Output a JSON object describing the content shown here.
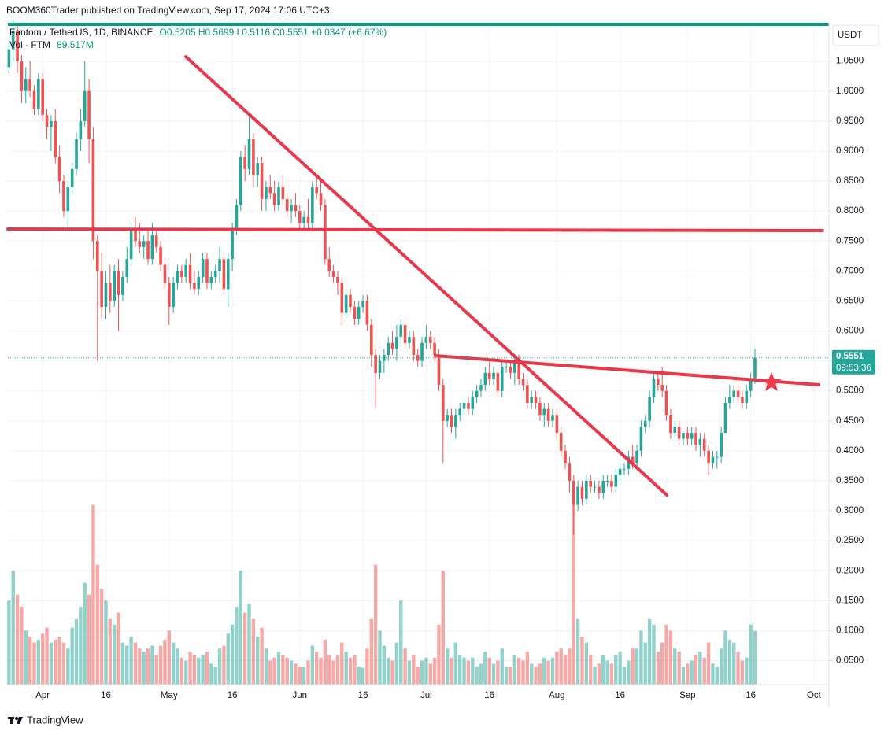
{
  "chart_data": {
    "type": "candlestick",
    "header": "BOOM360Trader published on TradingView.com, Sep 17, 2024 17:06 UTC+3",
    "symbol": "Fantom / TetherUS, 1D, BINANCE",
    "ohlc_text": "O0.5205 H0.5699 L0.5116 C0.5551 +0.0347 (+6.67%)",
    "volume_title": "Vol · FTM",
    "volume_text": "89.517M",
    "currency": "USDT",
    "countdown": "09:53:36",
    "brand": "TradingView",
    "last_price": {
      "value": 0.5551,
      "label": "0.5551"
    },
    "up_color": "#26a69a",
    "down_color": "#ef5350",
    "grid": true,
    "x": [
      "Mar 24",
      "Mar 25",
      "Mar 26",
      "Mar 27",
      "Mar 28",
      "Mar 29",
      "Mar 30",
      "Mar 31",
      "Apr 1",
      "Apr 2",
      "Apr 3",
      "Apr 4",
      "Apr 5",
      "Apr 6",
      "Apr 7",
      "Apr 8",
      "Apr 9",
      "Apr 10",
      "Apr 11",
      "Apr 12",
      "Apr 13",
      "Apr 14",
      "Apr 15",
      "Apr 16",
      "Apr 17",
      "Apr 18",
      "Apr 19",
      "Apr 20",
      "Apr 21",
      "Apr 22",
      "Apr 23",
      "Apr 24",
      "Apr 25",
      "Apr 26",
      "Apr 27",
      "Apr 28",
      "Apr 29",
      "Apr 30",
      "May 1",
      "May 2",
      "May 3",
      "May 4",
      "May 5",
      "May 6",
      "May 7",
      "May 8",
      "May 9",
      "May 10",
      "May 11",
      "May 12",
      "May 13",
      "May 14",
      "May 15",
      "May 16",
      "May 17",
      "May 18",
      "May 19",
      "May 20",
      "May 21",
      "May 22",
      "May 23",
      "May 24",
      "May 25",
      "May 26",
      "May 27",
      "May 28",
      "May 29",
      "May 30",
      "May 31",
      "Jun 1",
      "Jun 2",
      "Jun 3",
      "Jun 4",
      "Jun 5",
      "Jun 6",
      "Jun 7",
      "Jun 8",
      "Jun 9",
      "Jun 10",
      "Jun 11",
      "Jun 12",
      "Jun 13",
      "Jun 14",
      "Jun 15",
      "Jun 16",
      "Jun 17",
      "Jun 18",
      "Jun 19",
      "Jun 20",
      "Jun 21",
      "Jun 22",
      "Jun 23",
      "Jun 24",
      "Jun 25",
      "Jun 26",
      "Jun 27",
      "Jun 28",
      "Jun 29",
      "Jun 30",
      "Jul 1",
      "Jul 2",
      "Jul 3",
      "Jul 4",
      "Jul 5",
      "Jul 6",
      "Jul 7",
      "Jul 8",
      "Jul 9",
      "Jul 10",
      "Jul 11",
      "Jul 12",
      "Jul 13",
      "Jul 14",
      "Jul 15",
      "Jul 16",
      "Jul 17",
      "Jul 18",
      "Jul 19",
      "Jul 20",
      "Jul 21",
      "Jul 22",
      "Jul 23",
      "Jul 24",
      "Jul 25",
      "Jul 26",
      "Jul 27",
      "Jul 28",
      "Jul 29",
      "Jul 30",
      "Jul 31",
      "Aug 1",
      "Aug 2",
      "Aug 3",
      "Aug 4",
      "Aug 5",
      "Aug 6",
      "Aug 7",
      "Aug 8",
      "Aug 9",
      "Aug 10",
      "Aug 11",
      "Aug 12",
      "Aug 13",
      "Aug 14",
      "Aug 15",
      "Aug 16",
      "Aug 17",
      "Aug 18",
      "Aug 19",
      "Aug 20",
      "Aug 21",
      "Aug 22",
      "Aug 23",
      "Aug 24",
      "Aug 25",
      "Aug 26",
      "Aug 27",
      "Aug 28",
      "Aug 29",
      "Aug 30",
      "Aug 31",
      "Sep 1",
      "Sep 2",
      "Sep 3",
      "Sep 4",
      "Sep 5",
      "Sep 6",
      "Sep 7",
      "Sep 8",
      "Sep 9",
      "Sep 10",
      "Sep 11",
      "Sep 12",
      "Sep 13",
      "Sep 14",
      "Sep 15",
      "Sep 16",
      "Sep 17"
    ],
    "open": [
      1.04,
      1.07,
      1.1,
      1.05,
      1.0,
      1.02,
      1.0,
      0.97,
      1.02,
      0.96,
      0.94,
      0.95,
      0.89,
      0.85,
      0.8,
      0.84,
      0.87,
      0.92,
      0.95,
      1.0,
      0.92,
      0.75,
      0.7,
      0.64,
      0.68,
      0.65,
      0.7,
      0.66,
      0.69,
      0.72,
      0.77,
      0.75,
      0.74,
      0.75,
      0.72,
      0.76,
      0.74,
      0.71,
      0.68,
      0.64,
      0.68,
      0.7,
      0.69,
      0.71,
      0.68,
      0.67,
      0.69,
      0.72,
      0.68,
      0.69,
      0.7,
      0.72,
      0.67,
      0.72,
      0.77,
      0.81,
      0.89,
      0.87,
      0.92,
      0.86,
      0.88,
      0.82,
      0.84,
      0.83,
      0.81,
      0.84,
      0.82,
      0.8,
      0.81,
      0.8,
      0.78,
      0.79,
      0.78,
      0.84,
      0.83,
      0.81,
      0.72,
      0.7,
      0.69,
      0.68,
      0.63,
      0.66,
      0.64,
      0.62,
      0.64,
      0.65,
      0.61,
      0.56,
      0.53,
      0.55,
      0.56,
      0.58,
      0.57,
      0.59,
      0.61,
      0.58,
      0.59,
      0.56,
      0.55,
      0.58,
      0.59,
      0.58,
      0.56,
      0.51,
      0.45,
      0.46,
      0.44,
      0.46,
      0.47,
      0.48,
      0.47,
      0.49,
      0.5,
      0.51,
      0.53,
      0.52,
      0.53,
      0.5,
      0.54,
      0.54,
      0.53,
      0.55,
      0.52,
      0.51,
      0.48,
      0.49,
      0.48,
      0.46,
      0.47,
      0.45,
      0.46,
      0.43,
      0.4,
      0.38,
      0.35,
      0.31,
      0.34,
      0.32,
      0.35,
      0.34,
      0.34,
      0.33,
      0.35,
      0.35,
      0.34,
      0.36,
      0.37,
      0.37,
      0.39,
      0.38,
      0.4,
      0.44,
      0.45,
      0.49,
      0.52,
      0.51,
      0.5,
      0.46,
      0.43,
      0.44,
      0.42,
      0.43,
      0.42,
      0.43,
      0.41,
      0.42,
      0.4,
      0.38,
      0.39,
      0.39,
      0.43,
      0.48,
      0.49,
      0.5,
      0.49,
      0.48,
      0.5,
      0.5205
    ],
    "high": [
      1.08,
      1.12,
      1.11,
      1.06,
      1.04,
      1.05,
      1.01,
      1.03,
      1.03,
      0.97,
      0.96,
      0.97,
      0.91,
      0.86,
      0.85,
      0.88,
      0.93,
      0.97,
      1.05,
      1.02,
      0.94,
      0.76,
      0.73,
      0.7,
      0.71,
      0.71,
      0.72,
      0.7,
      0.74,
      0.78,
      0.79,
      0.78,
      0.76,
      0.77,
      0.78,
      0.77,
      0.75,
      0.72,
      0.69,
      0.69,
      0.71,
      0.71,
      0.72,
      0.73,
      0.7,
      0.7,
      0.73,
      0.73,
      0.7,
      0.71,
      0.74,
      0.73,
      0.73,
      0.78,
      0.82,
      0.9,
      0.91,
      0.96,
      0.93,
      0.89,
      0.89,
      0.85,
      0.86,
      0.85,
      0.85,
      0.86,
      0.83,
      0.82,
      0.83,
      0.81,
      0.8,
      0.82,
      0.85,
      0.86,
      0.85,
      0.82,
      0.74,
      0.71,
      0.7,
      0.69,
      0.67,
      0.67,
      0.65,
      0.65,
      0.66,
      0.66,
      0.62,
      0.57,
      0.56,
      0.57,
      0.59,
      0.6,
      0.61,
      0.62,
      0.62,
      0.6,
      0.6,
      0.57,
      0.59,
      0.61,
      0.6,
      0.59,
      0.57,
      0.52,
      0.47,
      0.47,
      0.47,
      0.48,
      0.49,
      0.49,
      0.5,
      0.51,
      0.52,
      0.54,
      0.55,
      0.54,
      0.54,
      0.55,
      0.55,
      0.55,
      0.56,
      0.56,
      0.53,
      0.52,
      0.5,
      0.5,
      0.49,
      0.48,
      0.48,
      0.47,
      0.47,
      0.44,
      0.41,
      0.39,
      0.36,
      0.35,
      0.35,
      0.36,
      0.36,
      0.35,
      0.35,
      0.36,
      0.36,
      0.36,
      0.37,
      0.38,
      0.38,
      0.4,
      0.41,
      0.41,
      0.45,
      0.46,
      0.5,
      0.53,
      0.53,
      0.54,
      0.51,
      0.47,
      0.45,
      0.45,
      0.43,
      0.44,
      0.44,
      0.44,
      0.43,
      0.43,
      0.41,
      0.4,
      0.4,
      0.44,
      0.49,
      0.51,
      0.51,
      0.52,
      0.5,
      0.51,
      0.53,
      0.5699
    ],
    "low": [
      1.03,
      1.05,
      1.03,
      0.98,
      0.98,
      0.99,
      0.96,
      0.96,
      0.95,
      0.92,
      0.9,
      0.88,
      0.83,
      0.79,
      0.77,
      0.83,
      0.86,
      0.9,
      0.94,
      0.88,
      0.72,
      0.55,
      0.62,
      0.62,
      0.63,
      0.64,
      0.6,
      0.65,
      0.68,
      0.71,
      0.74,
      0.73,
      0.72,
      0.71,
      0.71,
      0.73,
      0.7,
      0.67,
      0.61,
      0.63,
      0.67,
      0.68,
      0.68,
      0.67,
      0.66,
      0.66,
      0.68,
      0.67,
      0.67,
      0.68,
      0.68,
      0.66,
      0.64,
      0.7,
      0.76,
      0.8,
      0.85,
      0.86,
      0.84,
      0.84,
      0.8,
      0.8,
      0.82,
      0.8,
      0.8,
      0.81,
      0.79,
      0.78,
      0.79,
      0.77,
      0.77,
      0.77,
      0.77,
      0.82,
      0.8,
      0.71,
      0.69,
      0.68,
      0.66,
      0.61,
      0.62,
      0.63,
      0.61,
      0.61,
      0.63,
      0.6,
      0.54,
      0.47,
      0.52,
      0.53,
      0.55,
      0.56,
      0.55,
      0.58,
      0.57,
      0.57,
      0.55,
      0.54,
      0.54,
      0.57,
      0.57,
      0.55,
      0.5,
      0.38,
      0.44,
      0.43,
      0.42,
      0.45,
      0.46,
      0.46,
      0.46,
      0.48,
      0.49,
      0.5,
      0.51,
      0.51,
      0.49,
      0.49,
      0.53,
      0.52,
      0.51,
      0.51,
      0.5,
      0.47,
      0.47,
      0.47,
      0.45,
      0.44,
      0.44,
      0.44,
      0.42,
      0.39,
      0.37,
      0.33,
      0.26,
      0.3,
      0.31,
      0.31,
      0.33,
      0.33,
      0.32,
      0.32,
      0.34,
      0.33,
      0.33,
      0.35,
      0.36,
      0.36,
      0.37,
      0.37,
      0.39,
      0.43,
      0.44,
      0.48,
      0.5,
      0.49,
      0.45,
      0.42,
      0.42,
      0.41,
      0.41,
      0.41,
      0.41,
      0.4,
      0.39,
      0.39,
      0.36,
      0.37,
      0.37,
      0.38,
      0.43,
      0.47,
      0.48,
      0.48,
      0.47,
      0.47,
      0.49,
      0.5116
    ],
    "close": [
      1.07,
      1.1,
      1.05,
      1.0,
      1.02,
      1.0,
      0.97,
      1.02,
      0.96,
      0.94,
      0.95,
      0.89,
      0.85,
      0.8,
      0.84,
      0.87,
      0.92,
      0.95,
      1.0,
      0.92,
      0.75,
      0.7,
      0.64,
      0.68,
      0.65,
      0.7,
      0.66,
      0.69,
      0.72,
      0.77,
      0.75,
      0.74,
      0.75,
      0.72,
      0.76,
      0.74,
      0.71,
      0.68,
      0.64,
      0.68,
      0.7,
      0.69,
      0.71,
      0.68,
      0.67,
      0.69,
      0.72,
      0.68,
      0.69,
      0.7,
      0.72,
      0.67,
      0.72,
      0.77,
      0.81,
      0.89,
      0.87,
      0.92,
      0.86,
      0.88,
      0.82,
      0.84,
      0.83,
      0.81,
      0.84,
      0.82,
      0.8,
      0.81,
      0.8,
      0.78,
      0.79,
      0.78,
      0.84,
      0.83,
      0.81,
      0.72,
      0.7,
      0.69,
      0.68,
      0.63,
      0.66,
      0.64,
      0.62,
      0.64,
      0.65,
      0.61,
      0.56,
      0.53,
      0.55,
      0.56,
      0.58,
      0.57,
      0.59,
      0.61,
      0.58,
      0.59,
      0.56,
      0.55,
      0.58,
      0.59,
      0.58,
      0.56,
      0.51,
      0.45,
      0.46,
      0.44,
      0.46,
      0.47,
      0.48,
      0.47,
      0.49,
      0.5,
      0.51,
      0.53,
      0.52,
      0.53,
      0.5,
      0.54,
      0.54,
      0.53,
      0.55,
      0.52,
      0.51,
      0.48,
      0.49,
      0.48,
      0.46,
      0.47,
      0.45,
      0.46,
      0.43,
      0.4,
      0.38,
      0.35,
      0.31,
      0.34,
      0.32,
      0.35,
      0.34,
      0.34,
      0.33,
      0.35,
      0.35,
      0.34,
      0.36,
      0.37,
      0.37,
      0.39,
      0.38,
      0.4,
      0.44,
      0.45,
      0.49,
      0.52,
      0.51,
      0.5,
      0.46,
      0.43,
      0.44,
      0.42,
      0.43,
      0.42,
      0.43,
      0.41,
      0.42,
      0.4,
      0.38,
      0.39,
      0.39,
      0.43,
      0.48,
      0.49,
      0.5,
      0.49,
      0.48,
      0.5,
      0.5205,
      0.5551
    ],
    "volume": [
      140,
      190,
      150,
      130,
      90,
      80,
      70,
      75,
      85,
      95,
      70,
      75,
      80,
      70,
      60,
      95,
      110,
      130,
      170,
      150,
      300,
      200,
      160,
      140,
      110,
      100,
      120,
      70,
      65,
      80,
      70,
      60,
      55,
      60,
      65,
      50,
      65,
      75,
      90,
      70,
      60,
      45,
      40,
      55,
      50,
      45,
      50,
      55,
      35,
      30,
      60,
      65,
      85,
      100,
      130,
      190,
      120,
      135,
      110,
      80,
      95,
      60,
      40,
      45,
      55,
      50,
      45,
      40,
      35,
      30,
      30,
      40,
      65,
      55,
      45,
      75,
      50,
      40,
      50,
      70,
      55,
      45,
      50,
      30,
      28,
      60,
      110,
      200,
      90,
      65,
      45,
      40,
      70,
      140,
      60,
      40,
      50,
      30,
      40,
      45,
      35,
      45,
      100,
      190,
      60,
      45,
      70,
      50,
      45,
      40,
      45,
      30,
      35,
      55,
      45,
      35,
      40,
      60,
      30,
      30,
      50,
      45,
      40,
      55,
      35,
      30,
      35,
      45,
      40,
      45,
      55,
      60,
      50,
      60,
      300,
      110,
      80,
      70,
      50,
      30,
      35,
      50,
      40,
      35,
      50,
      55,
      30,
      40,
      60,
      60,
      90,
      70,
      110,
      100,
      55,
      70,
      100,
      90,
      60,
      55,
      30,
      35,
      40,
      50,
      55,
      45,
      70,
      35,
      30,
      60,
      90,
      75,
      70,
      55,
      40,
      45,
      100,
      89.517
    ],
    "volume_ylim": [
      0,
      1100
    ],
    "xlim": [
      "Mar 23",
      "Oct 4"
    ],
    "xticks": [
      {
        "value": "Apr 1",
        "label": "Apr"
      },
      {
        "value": "Apr 16",
        "label": "16"
      },
      {
        "value": "May 1",
        "label": "May"
      },
      {
        "value": "May 16",
        "label": "16"
      },
      {
        "value": "Jun 1",
        "label": "Jun"
      },
      {
        "value": "Jun 16",
        "label": "16"
      },
      {
        "value": "Jul 1",
        "label": "Jul"
      },
      {
        "value": "Jul 16",
        "label": "16"
      },
      {
        "value": "Aug 1",
        "label": "Aug"
      },
      {
        "value": "Aug 16",
        "label": "16"
      },
      {
        "value": "Sep 1",
        "label": "Sep"
      },
      {
        "value": "Sep 16",
        "label": "16"
      },
      {
        "value": "Oct 1",
        "label": "Oct"
      }
    ],
    "ylim": [
      0.01,
      1.11
    ],
    "yticks": [
      {
        "value": 0.05,
        "label": "0.0500"
      },
      {
        "value": 0.1,
        "label": "0.1000"
      },
      {
        "value": 0.15,
        "label": "0.1500"
      },
      {
        "value": 0.2,
        "label": "0.2000"
      },
      {
        "value": 0.25,
        "label": "0.2500"
      },
      {
        "value": 0.3,
        "label": "0.3000"
      },
      {
        "value": 0.35,
        "label": "0.3500"
      },
      {
        "value": 0.4,
        "label": "0.4000"
      },
      {
        "value": 0.45,
        "label": "0.4500"
      },
      {
        "value": 0.5,
        "label": "0.5000"
      },
      {
        "value": 0.55,
        "label": "0.5500"
      },
      {
        "value": 0.6,
        "label": "0.6000"
      },
      {
        "value": 0.65,
        "label": "0.6500"
      },
      {
        "value": 0.7,
        "label": "0.7000"
      },
      {
        "value": 0.75,
        "label": "0.7500"
      },
      {
        "value": 0.8,
        "label": "0.8000"
      },
      {
        "value": 0.85,
        "label": "0.8500"
      },
      {
        "value": 0.9,
        "label": "0.9000"
      },
      {
        "value": 0.95,
        "label": "0.9500"
      },
      {
        "value": 1.0,
        "label": "1.0000"
      },
      {
        "value": 1.05,
        "label": "1.0500"
      }
    ]
  }
}
